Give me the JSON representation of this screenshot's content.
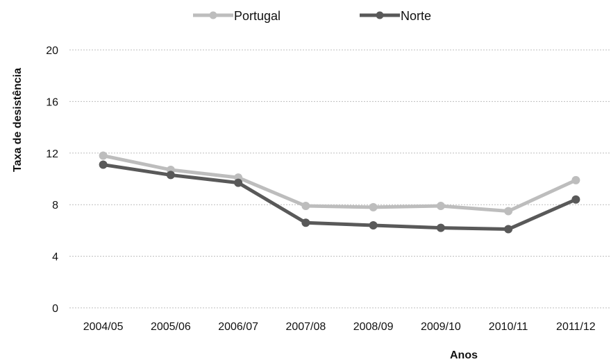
{
  "chart_data": {
    "type": "line",
    "title": "",
    "xlabel": "Anos",
    "ylabel": "Taxa de desistência",
    "categories": [
      "2004/05",
      "2005/06",
      "2006/07",
      "2007/08",
      "2008/09",
      "2009/10",
      "2010/11",
      "2011/12"
    ],
    "ylim": [
      0,
      20
    ],
    "yticks": [
      "0",
      "4",
      "8",
      "12",
      "16",
      "20"
    ],
    "grid": true,
    "legend_position": "top-center",
    "series": [
      {
        "name": "Portugal",
        "color": "#bdbdbd",
        "values": [
          11.8,
          10.7,
          10.1,
          7.9,
          7.8,
          7.9,
          7.5,
          9.9
        ]
      },
      {
        "name": "Norte",
        "color": "#595959",
        "values": [
          11.1,
          10.3,
          9.7,
          6.6,
          6.4,
          6.2,
          6.1,
          8.4
        ]
      }
    ]
  }
}
